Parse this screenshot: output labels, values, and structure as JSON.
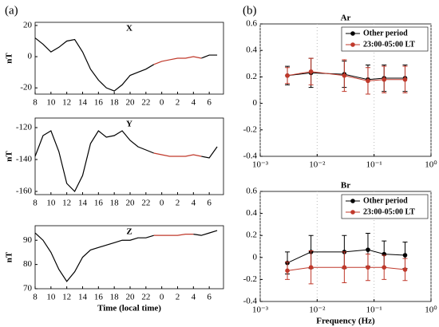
{
  "chart_data": [
    {
      "type": "line",
      "panel_label": "(a)",
      "title": "X",
      "y_label": "nT",
      "x": [
        8,
        9,
        10,
        11,
        12,
        13,
        14,
        15,
        16,
        17,
        18,
        19,
        20,
        21,
        22,
        23,
        24,
        25,
        26,
        27,
        28,
        29,
        30,
        31
      ],
      "series": [
        {
          "color": "#000000",
          "values": [
            12,
            8,
            3,
            6,
            10,
            11,
            3,
            -8,
            -15,
            -20,
            -22,
            -18,
            -12,
            -10,
            -8,
            -5,
            null,
            null,
            null,
            null,
            null,
            -1,
            1,
            1
          ]
        },
        {
          "color": "#c0392b",
          "values": [
            null,
            null,
            null,
            null,
            null,
            null,
            null,
            null,
            null,
            null,
            null,
            null,
            null,
            null,
            null,
            -5,
            -3,
            -2,
            -1,
            -1,
            0,
            -1,
            null,
            null
          ]
        }
      ],
      "xlim": [
        8,
        31.8
      ],
      "xticks": [
        8,
        10,
        12,
        14,
        16,
        18,
        20,
        22,
        {
          "value": 24,
          "label": "0"
        },
        {
          "value": 26,
          "label": "2"
        },
        {
          "value": 28,
          "label": "4"
        },
        {
          "value": 30,
          "label": "6"
        }
      ],
      "ylim": [
        -24,
        22
      ],
      "yticks": [
        -20,
        0,
        20
      ]
    },
    {
      "type": "line",
      "title": "Y",
      "y_label": "nT",
      "x": [
        8,
        9,
        10,
        11,
        12,
        13,
        14,
        15,
        16,
        17,
        18,
        19,
        20,
        21,
        22,
        23,
        24,
        25,
        26,
        27,
        28,
        29,
        30,
        31
      ],
      "series": [
        {
          "color": "#000000",
          "values": [
            -138,
            -125,
            -122,
            -135,
            -155,
            -160,
            -150,
            -130,
            -122,
            -126,
            -125,
            -122,
            -128,
            -132,
            -134,
            -136,
            null,
            null,
            null,
            null,
            null,
            -138,
            -139,
            -132
          ]
        },
        {
          "color": "#c0392b",
          "values": [
            null,
            null,
            null,
            null,
            null,
            null,
            null,
            null,
            null,
            null,
            null,
            null,
            null,
            null,
            null,
            -136,
            -137,
            -138,
            -138,
            -138,
            -137,
            -138,
            null,
            null
          ]
        }
      ],
      "xlim": [
        8,
        31.8
      ],
      "xticks": [
        8,
        10,
        12,
        14,
        16,
        18,
        20,
        22,
        {
          "value": 24,
          "label": "0"
        },
        {
          "value": 26,
          "label": "2"
        },
        {
          "value": 28,
          "label": "4"
        },
        {
          "value": 30,
          "label": "6"
        }
      ],
      "ylim": [
        -162,
        -114
      ],
      "yticks": [
        -120,
        -140,
        -160
      ]
    },
    {
      "type": "line",
      "title": "Z",
      "y_label": "nT",
      "x_label": "Time (local time)",
      "x": [
        8,
        9,
        10,
        11,
        12,
        13,
        14,
        15,
        16,
        17,
        18,
        19,
        20,
        21,
        22,
        23,
        24,
        25,
        26,
        27,
        28,
        29,
        30,
        31
      ],
      "series": [
        {
          "color": "#000000",
          "values": [
            93,
            90,
            85,
            78,
            73,
            77,
            83,
            86,
            87,
            88,
            89,
            90,
            90,
            91,
            91,
            92,
            null,
            null,
            null,
            null,
            92.5,
            92,
            93,
            94
          ]
        },
        {
          "color": "#c0392b",
          "values": [
            null,
            null,
            null,
            null,
            null,
            null,
            null,
            null,
            null,
            null,
            null,
            null,
            null,
            null,
            null,
            92,
            92,
            92,
            92,
            92.5,
            92.5,
            null,
            null,
            null
          ]
        }
      ],
      "xlim": [
        8,
        31.8
      ],
      "xticks": [
        8,
        10,
        12,
        14,
        16,
        18,
        20,
        22,
        {
          "value": 24,
          "label": "0"
        },
        {
          "value": 26,
          "label": "2"
        },
        {
          "value": 28,
          "label": "4"
        },
        {
          "value": 30,
          "label": "6"
        }
      ],
      "ylim": [
        70,
        96
      ],
      "yticks": [
        70,
        80,
        90
      ]
    },
    {
      "type": "errorbar",
      "panel_label": "(b)",
      "title": "Ar",
      "log_x": true,
      "grid": true,
      "legend": "upper right",
      "x": [
        0.003,
        0.0078,
        0.03,
        0.078,
        0.15,
        0.35
      ],
      "series": [
        {
          "name": "Other period",
          "color": "#000000",
          "values": [
            0.21,
            0.23,
            0.22,
            0.18,
            0.19,
            0.19
          ],
          "errors": [
            0.07,
            0.11,
            0.1,
            0.11,
            0.1,
            0.1
          ]
        },
        {
          "name": "23:00-05:00 LT",
          "color": "#c0392b",
          "values": [
            0.21,
            0.24,
            0.21,
            0.17,
            0.18,
            0.18
          ],
          "errors": [
            0.06,
            0.1,
            0.12,
            0.1,
            0.1,
            0.1
          ]
        }
      ],
      "xlim": [
        0.001,
        1
      ],
      "xticks": [
        {
          "value": 0.001,
          "label": "10⁻³"
        },
        {
          "value": 0.01,
          "label": "10⁻²"
        },
        {
          "value": 0.1,
          "label": "10⁻¹"
        },
        {
          "value": 1,
          "label": "10⁰"
        }
      ],
      "ylim": [
        -0.4,
        0.6
      ],
      "yticks": [
        -0.4,
        -0.2,
        0,
        0.2,
        0.4,
        0.6
      ]
    },
    {
      "type": "errorbar",
      "title": "Br",
      "log_x": true,
      "grid": true,
      "legend": "upper right",
      "x_label": "Frequency (Hz)",
      "x": [
        0.003,
        0.0078,
        0.03,
        0.078,
        0.15,
        0.35
      ],
      "series": [
        {
          "name": "Other period",
          "color": "#000000",
          "values": [
            -0.05,
            0.05,
            0.05,
            0.07,
            0.03,
            0.02
          ],
          "errors": [
            0.1,
            0.15,
            0.15,
            0.15,
            0.12,
            0.12
          ]
        },
        {
          "name": "23:00-05:00 LT",
          "color": "#c0392b",
          "values": [
            -0.12,
            -0.09,
            -0.09,
            -0.09,
            -0.09,
            -0.11
          ],
          "errors": [
            0.08,
            0.15,
            0.14,
            0.12,
            0.11,
            0.1
          ]
        }
      ],
      "xlim": [
        0.001,
        1
      ],
      "xticks": [
        {
          "value": 0.001,
          "label": "10⁻³"
        },
        {
          "value": 0.01,
          "label": "10⁻²"
        },
        {
          "value": 0.1,
          "label": "10⁻¹"
        },
        {
          "value": 1,
          "label": "10⁰"
        }
      ],
      "ylim": [
        -0.4,
        0.6
      ],
      "yticks": [
        -0.4,
        -0.2,
        0,
        0.2,
        0.4,
        0.6
      ]
    }
  ]
}
